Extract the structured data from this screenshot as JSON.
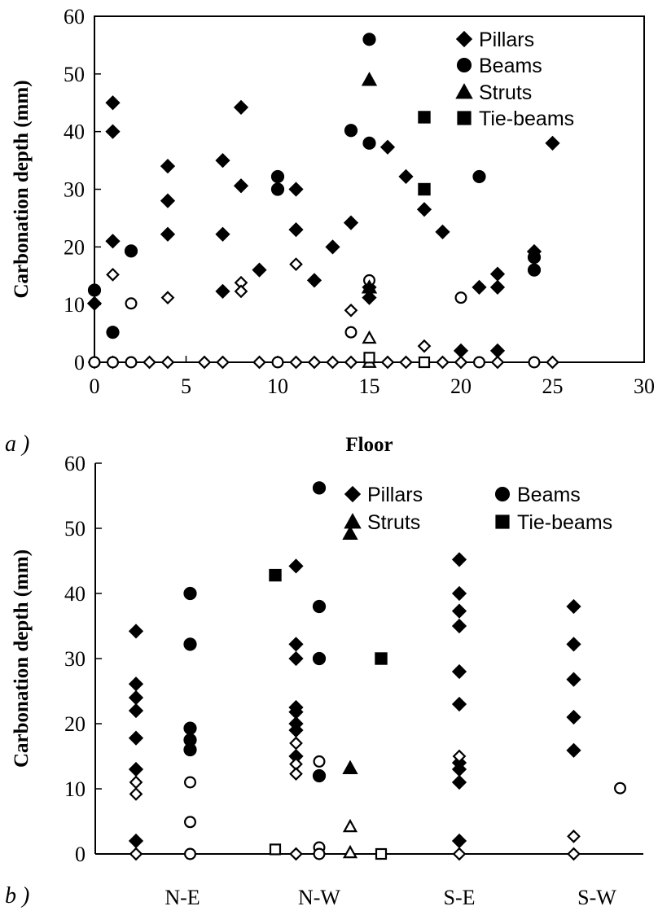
{
  "chart_data": [
    {
      "panel_label": "a )",
      "type": "scatter",
      "title": "",
      "xlabel": "Floor",
      "ylabel": "Carbonation depth (mm)",
      "xlim": [
        0,
        30
      ],
      "ylim": [
        0,
        60
      ],
      "xticks": [
        0,
        5,
        10,
        15,
        20,
        25,
        30
      ],
      "yticks": [
        0,
        10,
        20,
        30,
        40,
        50,
        60
      ],
      "grid": false,
      "legend": {
        "placement": "top-right",
        "columns": 1,
        "entries": [
          "Pillars",
          "Beams",
          "Struts",
          "Tie-beams"
        ]
      },
      "series": [
        {
          "name": "Pillars",
          "marker": "diamond",
          "filled": true,
          "points": [
            [
              0,
              10.2
            ],
            [
              1,
              45
            ],
            [
              1,
              40
            ],
            [
              1,
              21
            ],
            [
              4,
              34
            ],
            [
              4,
              28
            ],
            [
              4,
              22.2
            ],
            [
              7,
              35
            ],
            [
              7,
              22.2
            ],
            [
              7,
              12.3
            ],
            [
              8,
              44.2
            ],
            [
              8,
              30.6
            ],
            [
              9,
              16
            ],
            [
              11,
              30
            ],
            [
              11,
              23
            ],
            [
              12,
              14.2
            ],
            [
              13,
              20
            ],
            [
              14,
              24.2
            ],
            [
              15,
              11.2
            ],
            [
              15,
              13
            ],
            [
              16,
              37.3
            ],
            [
              17,
              32.2
            ],
            [
              18,
              26.5
            ],
            [
              19,
              22.6
            ],
            [
              20,
              2
            ],
            [
              21,
              13
            ],
            [
              22,
              15.3
            ],
            [
              22,
              13
            ],
            [
              22,
              2
            ],
            [
              24,
              19.2
            ],
            [
              25,
              38
            ]
          ]
        },
        {
          "name": "Pillars (open)",
          "marker": "diamond",
          "filled": false,
          "points": [
            [
              0,
              0
            ],
            [
              1,
              15.2
            ],
            [
              1,
              0
            ],
            [
              3,
              0
            ],
            [
              4,
              11.2
            ],
            [
              4,
              0
            ],
            [
              6,
              0
            ],
            [
              7,
              0
            ],
            [
              8,
              13.8
            ],
            [
              8,
              12.3
            ],
            [
              9,
              0
            ],
            [
              11,
              17
            ],
            [
              11,
              0
            ],
            [
              12,
              0
            ],
            [
              13,
              0
            ],
            [
              14,
              9
            ],
            [
              14,
              0
            ],
            [
              16,
              0
            ],
            [
              17,
              0
            ],
            [
              18,
              2.8
            ],
            [
              19,
              0
            ],
            [
              20,
              0
            ],
            [
              22,
              0
            ],
            [
              25,
              0
            ]
          ]
        },
        {
          "name": "Beams",
          "marker": "circle",
          "filled": true,
          "points": [
            [
              0,
              12.5
            ],
            [
              1,
              5.2
            ],
            [
              2,
              19.3
            ],
            [
              10,
              32.2
            ],
            [
              10,
              30
            ],
            [
              14,
              40.2
            ],
            [
              15,
              56
            ],
            [
              15,
              38
            ],
            [
              21,
              32.2
            ],
            [
              24,
              18.2
            ],
            [
              24,
              16
            ]
          ]
        },
        {
          "name": "Beams (open)",
          "marker": "circle",
          "filled": false,
          "points": [
            [
              0,
              0
            ],
            [
              1,
              0
            ],
            [
              2,
              10.2
            ],
            [
              2,
              0
            ],
            [
              10,
              0
            ],
            [
              14,
              5.2
            ],
            [
              15,
              14.2
            ],
            [
              20,
              11.2
            ],
            [
              21,
              0
            ],
            [
              24,
              0
            ]
          ]
        },
        {
          "name": "Struts",
          "marker": "triangle",
          "filled": true,
          "points": [
            [
              15,
              49
            ],
            [
              15,
              13
            ]
          ]
        },
        {
          "name": "Struts (open)",
          "marker": "triangle",
          "filled": false,
          "points": [
            [
              15,
              4.2
            ],
            [
              15,
              0
            ]
          ]
        },
        {
          "name": "Tie-beams",
          "marker": "square",
          "filled": true,
          "points": [
            [
              18,
              42.5
            ],
            [
              18,
              30
            ]
          ]
        },
        {
          "name": "Tie-beams (open)",
          "marker": "square",
          "filled": false,
          "points": [
            [
              18,
              0
            ],
            [
              15,
              0.8
            ]
          ]
        }
      ]
    },
    {
      "panel_label": "b )",
      "type": "scatter",
      "title": "",
      "xlabel": "",
      "ylabel": "Carbonation depth (mm)",
      "categories": [
        "N-E",
        "N-W",
        "S-E",
        "S-W"
      ],
      "ylim": [
        0,
        60
      ],
      "yticks": [
        0,
        10,
        20,
        30,
        40,
        50,
        60
      ],
      "grid": false,
      "legend": {
        "placement": "top-right",
        "columns": 2,
        "entries": [
          "Pillars",
          "Beams",
          "Struts",
          "Tie-beams"
        ]
      },
      "series": [
        {
          "name": "Pillars",
          "marker": "diamond",
          "filled": true,
          "points": [
            [
              "N-E",
              -0.6,
              34.2
            ],
            [
              "N-E",
              -0.6,
              26.1
            ],
            [
              "N-E",
              -0.6,
              24
            ],
            [
              "N-E",
              -0.6,
              22
            ],
            [
              "N-E",
              -0.6,
              17.8
            ],
            [
              "N-E",
              -0.6,
              13
            ],
            [
              "N-E",
              -0.6,
              2
            ],
            [
              "N-W",
              -0.3,
              44.2
            ],
            [
              "N-W",
              -0.3,
              32.2
            ],
            [
              "N-W",
              -0.3,
              30
            ],
            [
              "N-W",
              -0.3,
              22.5
            ],
            [
              "N-W",
              -0.3,
              21.8
            ],
            [
              "N-W",
              -0.3,
              20
            ],
            [
              "N-W",
              -0.3,
              19
            ],
            [
              "N-W",
              -0.3,
              15
            ],
            [
              "S-E",
              0,
              45.2
            ],
            [
              "S-E",
              0,
              40
            ],
            [
              "S-E",
              0,
              37.3
            ],
            [
              "S-E",
              0,
              35
            ],
            [
              "S-E",
              0,
              28
            ],
            [
              "S-E",
              0,
              23
            ],
            [
              "S-E",
              0,
              14
            ],
            [
              "S-E",
              0,
              13
            ],
            [
              "S-E",
              0,
              11
            ],
            [
              "S-E",
              0,
              2
            ],
            [
              "S-W",
              -0.3,
              38
            ],
            [
              "S-W",
              -0.3,
              32.2
            ],
            [
              "S-W",
              -0.3,
              26.8
            ],
            [
              "S-W",
              -0.3,
              21
            ],
            [
              "S-W",
              -0.3,
              15.9
            ]
          ]
        },
        {
          "name": "Pillars (open)",
          "marker": "diamond",
          "filled": false,
          "points": [
            [
              "N-E",
              -0.6,
              11
            ],
            [
              "N-E",
              -0.6,
              9.2
            ],
            [
              "N-E",
              -0.6,
              0
            ],
            [
              "N-W",
              -0.3,
              17
            ],
            [
              "N-W",
              -0.3,
              13.8
            ],
            [
              "N-W",
              -0.3,
              12.3
            ],
            [
              "N-W",
              -0.3,
              0
            ],
            [
              "S-E",
              0,
              15
            ],
            [
              "S-E",
              0,
              0
            ],
            [
              "S-W",
              -0.3,
              2.7
            ],
            [
              "S-W",
              -0.3,
              0
            ]
          ]
        },
        {
          "name": "Beams",
          "marker": "circle",
          "filled": true,
          "points": [
            [
              "N-E",
              0.1,
              40
            ],
            [
              "N-E",
              0.1,
              32.2
            ],
            [
              "N-E",
              0.1,
              19.3
            ],
            [
              "N-E",
              0.1,
              17.5
            ],
            [
              "N-E",
              0.1,
              16
            ],
            [
              "N-W",
              0.0,
              56.2
            ],
            [
              "N-W",
              0.0,
              38
            ],
            [
              "N-W",
              0.0,
              30
            ],
            [
              "N-W",
              0.0,
              12
            ]
          ]
        },
        {
          "name": "Beams (open)",
          "marker": "circle",
          "filled": false,
          "points": [
            [
              "N-E",
              0.1,
              11
            ],
            [
              "N-E",
              0.1,
              4.9
            ],
            [
              "N-E",
              0.1,
              0
            ],
            [
              "N-W",
              0.0,
              14.2
            ],
            [
              "N-W",
              0.0,
              1
            ],
            [
              "N-W",
              0.0,
              0
            ],
            [
              "S-W",
              0.3,
              10.1
            ]
          ]
        },
        {
          "name": "Struts",
          "marker": "triangle",
          "filled": true,
          "points": [
            [
              "N-W",
              0.4,
              49.2
            ],
            [
              "N-W",
              0.4,
              13.2
            ]
          ]
        },
        {
          "name": "Struts (open)",
          "marker": "triangle",
          "filled": false,
          "points": [
            [
              "N-W",
              0.4,
              4.2
            ],
            [
              "N-W",
              0.4,
              0.2
            ]
          ]
        },
        {
          "name": "Tie-beams",
          "marker": "square",
          "filled": true,
          "points": [
            [
              "N-E",
              1.2,
              42.8
            ],
            [
              "N-W",
              0.8,
              30
            ]
          ]
        },
        {
          "name": "Tie-beams (open)",
          "marker": "square",
          "filled": false,
          "points": [
            [
              "N-E",
              1.2,
              0.7
            ],
            [
              "N-W",
              0.8,
              0
            ],
            [
              "S-W",
              1.2,
              0
            ]
          ]
        }
      ]
    }
  ]
}
